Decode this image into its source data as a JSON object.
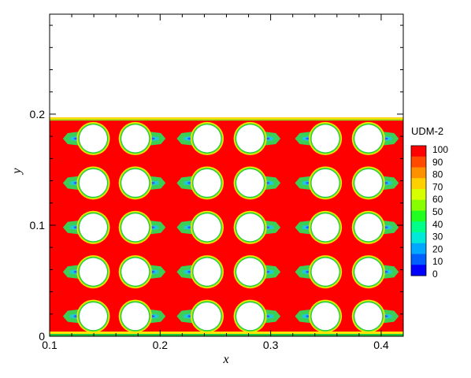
{
  "chart_data": {
    "type": "heatmap",
    "title": "",
    "xlabel": "x",
    "ylabel": "y",
    "xlim": [
      0.1,
      0.42
    ],
    "ylim": [
      0,
      0.29
    ],
    "x_ticks": [
      "0.1",
      "0.2",
      "0.3",
      "0.4"
    ],
    "x_tick_values": [
      0.1,
      0.2,
      0.3,
      0.4
    ],
    "y_ticks": [
      "0",
      "0.1",
      "0.2"
    ],
    "y_tick_values": [
      0,
      0.1,
      0.2
    ],
    "filled_region_ymax": 0.197,
    "field_background_value": 100,
    "obstacle_shape": "circle",
    "obstacle_radius": 0.0125,
    "obstacle_columns_x": [
      0.1395,
      0.1775,
      0.2425,
      0.2815,
      0.3495,
      0.3885
    ],
    "obstacle_rows_y": [
      0.178,
      0.138,
      0.098,
      0.058,
      0.018
    ],
    "legend": {
      "title": "UDM-2",
      "levels": [
        100,
        90,
        80,
        70,
        60,
        50,
        40,
        30,
        20,
        10,
        0
      ],
      "level_labels": [
        "100",
        "90",
        "80",
        "70",
        "60",
        "50",
        "40",
        "30",
        "20",
        "10",
        "0"
      ],
      "placement": "right",
      "colors": [
        "#ff0000",
        "#ff4a00",
        "#ff9000",
        "#ffd000",
        "#d8ff00",
        "#88ff00",
        "#20ff20",
        "#00ff88",
        "#00e8d8",
        "#00a8ff",
        "#0060ff",
        "#0000ff"
      ]
    },
    "contour_colors": {
      "ring_outer": "#ffe600",
      "ring_mid": "#7ce61e",
      "ring_inner": "#1ec83c",
      "wake_cyan": "#22c8d6",
      "wake_blue": "#2a5cff",
      "wake_green": "#3ccf55"
    }
  }
}
